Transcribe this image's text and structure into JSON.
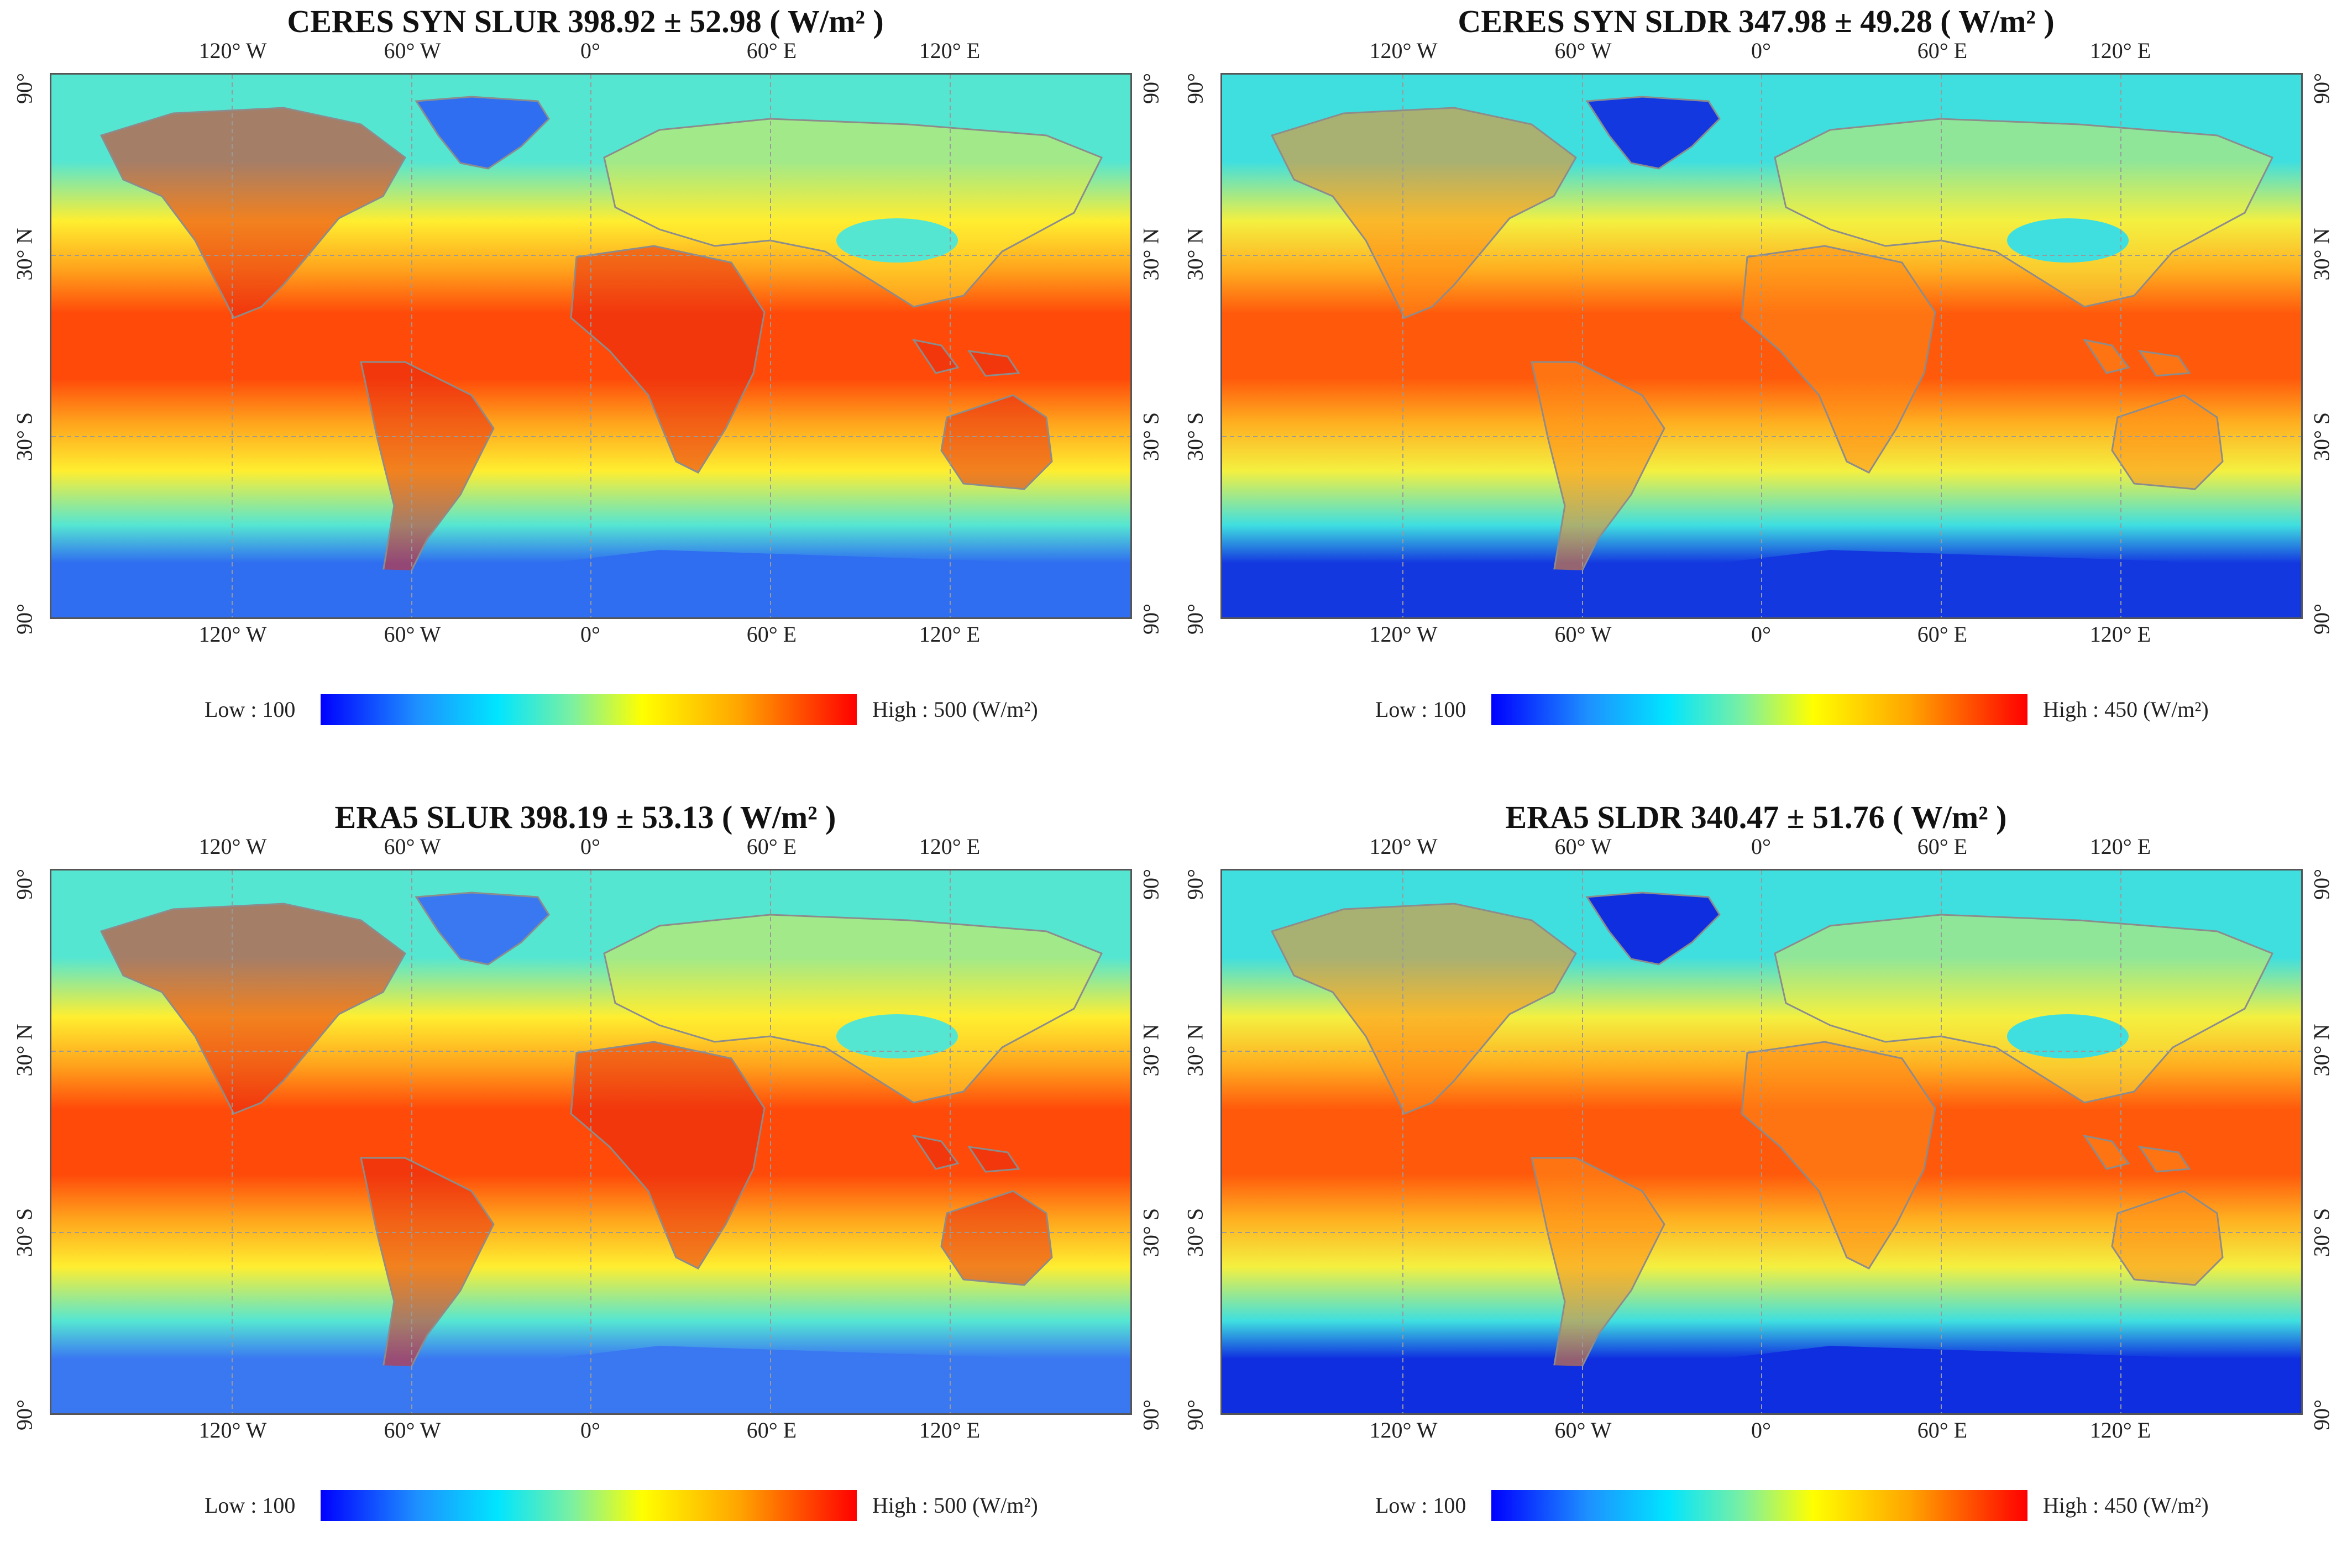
{
  "panels": [
    {
      "title": "CERES SYN SLUR 398.92 ± 52.98 ( W/m² )",
      "legend": {
        "low": "Low : 100",
        "high": "High : 500 (W/m²)"
      },
      "colors": {
        "tropics": "#ff4a0a",
        "mid": "#ffa21c",
        "subpolar": "#ffee30",
        "polar": "#55e6d2",
        "ice": "#2f6ef0",
        "land_hot": "#e82810"
      }
    },
    {
      "title": "CERES SYN SLDR 347.98 ± 49.28 ( W/m² )",
      "legend": {
        "low": "Low : 100",
        "high": "High : 450 (W/m²)"
      },
      "colors": {
        "tropics": "#ff5a0c",
        "mid": "#ffae20",
        "subpolar": "#f4f040",
        "polar": "#3fdfe0",
        "ice": "#1438e0",
        "land_hot": "#ff8a18"
      }
    },
    {
      "title": "ERA5 SLUR 398.19 ± 53.13 ( W/m² )",
      "legend": {
        "low": "Low : 100",
        "high": "High : 500 (W/m²)"
      },
      "colors": {
        "tropics": "#ff4a0a",
        "mid": "#ffa21c",
        "subpolar": "#ffee30",
        "polar": "#55e6d2",
        "ice": "#3a78f2",
        "land_hot": "#e82810"
      }
    },
    {
      "title": "ERA5 SLDR 340.47 ± 51.76 ( W/m² )",
      "legend": {
        "low": "Low : 100",
        "high": "High : 450 (W/m²)"
      },
      "colors": {
        "tropics": "#ff5a0c",
        "mid": "#ffae20",
        "subpolar": "#f4f040",
        "polar": "#3fdfe0",
        "ice": "#0f2ee0",
        "land_hot": "#ff8a18"
      }
    }
  ],
  "axes": {
    "lon_ticks": [
      "120° W",
      "60° W",
      "0°",
      "60° E",
      "120° E"
    ],
    "lon_ticks_bottom": [
      "120° W",
      "60° W",
      "0°",
      "60° E",
      "120° E"
    ],
    "lat_ticks": [
      "90°",
      "30° N",
      "30° S",
      "90°"
    ],
    "lon_values": [
      -120,
      -60,
      0,
      60,
      120
    ],
    "lat_values": [
      90,
      30,
      -30,
      -90
    ]
  }
}
